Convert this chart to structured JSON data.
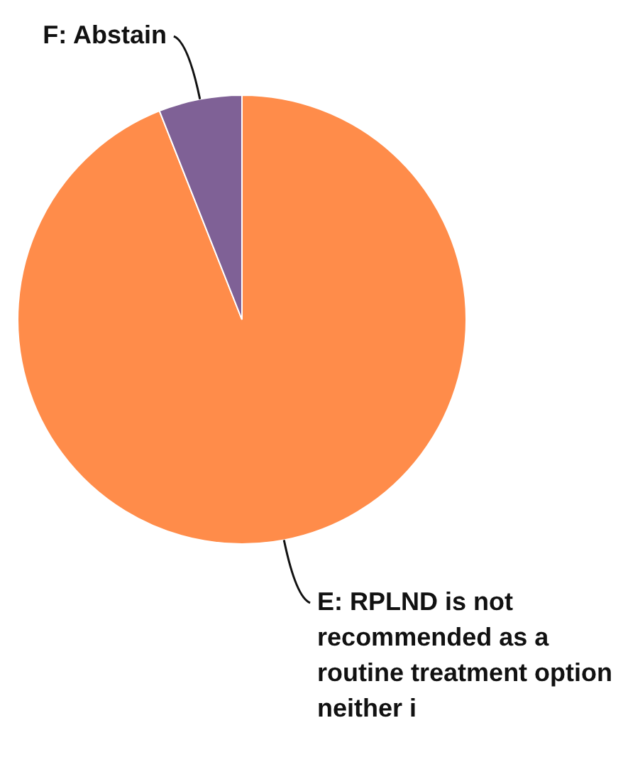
{
  "chart_data": {
    "type": "pie",
    "categories": [
      "E: RPLND is not recommended as a routine treatment option neither i",
      "F: Abstain"
    ],
    "values": [
      94,
      6
    ],
    "colors": [
      "#ff8c4a",
      "#7f6196"
    ],
    "legend": false
  }
}
